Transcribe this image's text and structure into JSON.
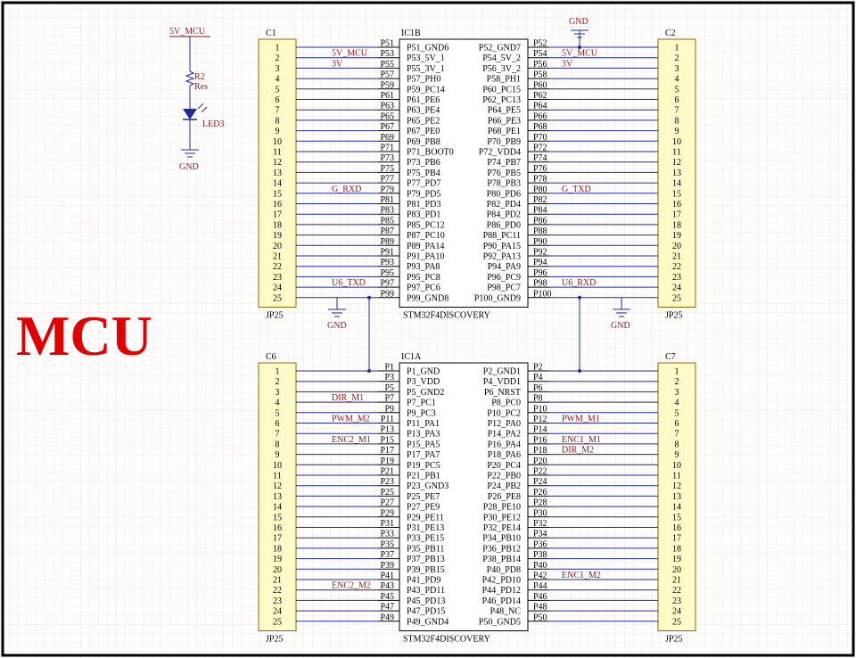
{
  "title": "MCU",
  "led": {
    "power_label": "5V_MCU",
    "resistor_ref": "R2",
    "resistor_value": "Res",
    "led_ref": "LED3",
    "ground_label": "GND"
  },
  "grounds": {
    "label": "GND"
  },
  "ic1b": {
    "ref": "IC1B",
    "part": "STM32F4DISCOVERY",
    "left": [
      "P51_GND6",
      "P53_5V_1",
      "P55_3V_1",
      "P57_PH0",
      "P59_PC14",
      "P61_PE6",
      "P63_PE4",
      "P65_PE2",
      "P67_PE0",
      "P69_PB8",
      "P71_BOOT0",
      "P73_PB6",
      "P75_PB4",
      "P77_PD7",
      "P79_PD5",
      "P81_PD3",
      "P83_PD1",
      "P85_PC12",
      "P87_PC10",
      "P89_PA14",
      "P91_PA10",
      "P93_PA8",
      "P95_PC8",
      "P97_PC6",
      "P99_GND8"
    ],
    "right": [
      "P52_GND7",
      "P54_5V_2",
      "P56_3V_2",
      "P58_PH1",
      "P60_PC15",
      "P62_PC13",
      "P64_PE5",
      "P66_PE3",
      "P68_PE1",
      "P70_PB9",
      "P72_VDD4",
      "P74_PB7",
      "P76_PB5",
      "P78_PB3",
      "P80_PD6",
      "P82_PD4",
      "P84_PD2",
      "P86_PD0",
      "P88_PC11",
      "P90_PA15",
      "P92_PA13",
      "P94_PA9",
      "P96_PC9",
      "P98_PC7",
      "P100_GND9"
    ],
    "left_pins": [
      "P51",
      "P53",
      "P55",
      "P57",
      "P59",
      "P61",
      "P63",
      "P65",
      "P67",
      "P69",
      "P71",
      "P73",
      "P75",
      "P77",
      "P79",
      "P81",
      "P83",
      "P85",
      "P87",
      "P89",
      "P91",
      "P93",
      "P95",
      "P97",
      "P99"
    ],
    "right_pins": [
      "P52",
      "P54",
      "P56",
      "P58",
      "P60",
      "P62",
      "P64",
      "P66",
      "P68",
      "P70",
      "P72",
      "P74",
      "P76",
      "P78",
      "P80",
      "P82",
      "P84",
      "P86",
      "P88",
      "P90",
      "P92",
      "P94",
      "P96",
      "P98",
      "P100"
    ]
  },
  "ic1a": {
    "ref": "IC1A",
    "part": "STM32F4DISCOVERY",
    "left": [
      "P1_GND",
      "P3_VDD",
      "P5_GND2",
      "P7_PC1",
      "P9_PC3",
      "P11_PA1",
      "P13_PA3",
      "P15_PA5",
      "P17_PA7",
      "P19_PC5",
      "P21_PB1",
      "P23_GND3",
      "P25_PE7",
      "P27_PE9",
      "P29_PE11",
      "P31_PE13",
      "P33_PE15",
      "P35_PB11",
      "P37_PB13",
      "P39_PB15",
      "P41_PD9",
      "P43_PD11",
      "P45_PD13",
      "P47_PD15",
      "P49_GND4"
    ],
    "right": [
      "P2_GND1",
      "P4_VDD1",
      "P6_NRST",
      "P8_PC0",
      "P10_PC2",
      "P12_PA0",
      "P14_PA2",
      "P16_PA4",
      "P18_PA6",
      "P20_PC4",
      "P22_PB0",
      "P24_PB2",
      "P26_PE8",
      "P28_PE10",
      "P30_PE12",
      "P32_PE14",
      "P34_PB10",
      "P36_PB12",
      "P38_PB14",
      "P40_PD8",
      "P42_PD10",
      "P44_PD12",
      "P46_PD14",
      "P48_NC",
      "P50_GND5"
    ],
    "left_pins": [
      "P1",
      "P3",
      "P5",
      "P7",
      "P9",
      "P11",
      "P13",
      "P15",
      "P17",
      "P19",
      "P21",
      "P23",
      "P25",
      "P27",
      "P29",
      "P31",
      "P33",
      "P35",
      "P37",
      "P39",
      "P41",
      "P43",
      "P45",
      "P47",
      "P49"
    ],
    "right_pins": [
      "P2",
      "P4",
      "P6",
      "P8",
      "P10",
      "P12",
      "P14",
      "P16",
      "P18",
      "P20",
      "P22",
      "P24",
      "P26",
      "P28",
      "P30",
      "P32",
      "P34",
      "P36",
      "P38",
      "P40",
      "P42",
      "P44",
      "P46",
      "P48",
      "P50"
    ]
  },
  "connectors": {
    "c1": {
      "ref": "C1",
      "part": "JP25"
    },
    "c2": {
      "ref": "C2",
      "part": "JP25"
    },
    "c6": {
      "ref": "C6",
      "part": "JP25"
    },
    "c7": {
      "ref": "C7",
      "part": "JP25"
    },
    "numbers": [
      "1",
      "2",
      "3",
      "4",
      "5",
      "6",
      "7",
      "8",
      "9",
      "10",
      "11",
      "12",
      "13",
      "14",
      "15",
      "16",
      "17",
      "18",
      "19",
      "20",
      "21",
      "22",
      "23",
      "24",
      "25"
    ]
  },
  "nets": {
    "top_left": [
      {
        "row": 1,
        "text": "5V_MCU"
      },
      {
        "row": 2,
        "text": "3V"
      },
      {
        "row": 14,
        "text": "G_RXD"
      },
      {
        "row": 23,
        "text": "U6_TXD"
      }
    ],
    "top_right": [
      {
        "row": 1,
        "text": "5V_MCU"
      },
      {
        "row": 2,
        "text": "3V"
      },
      {
        "row": 14,
        "text": "G_TXD"
      },
      {
        "row": 23,
        "text": "U6_RXD"
      }
    ],
    "bottom_left": [
      {
        "row": 3,
        "text": "DIR_M1"
      },
      {
        "row": 5,
        "text": "PWM_M2"
      },
      {
        "row": 7,
        "text": "ENC2_M1"
      },
      {
        "row": 21,
        "text": "ENC2_M2"
      }
    ],
    "bottom_right": [
      {
        "row": 5,
        "text": "PWM_M1"
      },
      {
        "row": 7,
        "text": "ENC1_M1"
      },
      {
        "row": 8,
        "text": "DIR_M2"
      },
      {
        "row": 20,
        "text": "ENC1_M2"
      }
    ]
  }
}
